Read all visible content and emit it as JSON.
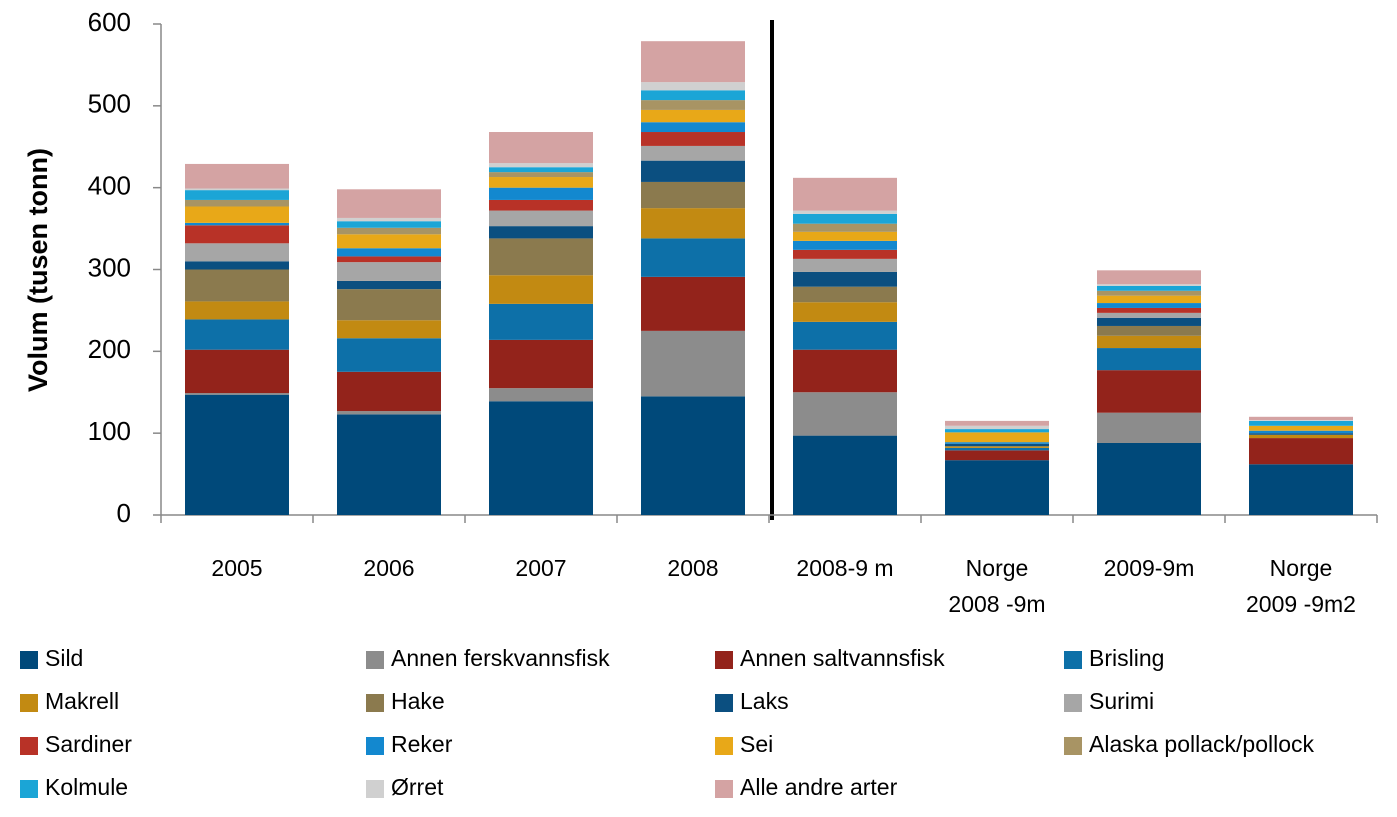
{
  "chart_data": {
    "type": "stacked_bar",
    "ylabel": "Volum (tusen tonn)",
    "categories": [
      "2005",
      "2006",
      "2007",
      "2008",
      "2008-9 m",
      "Norge\n2008 -9m",
      "2009-9m",
      "Norge\n2009 -9m2"
    ],
    "ylim": [
      0,
      600
    ],
    "yticks": [
      0,
      100,
      200,
      300,
      400,
      500,
      600
    ],
    "series": [
      {
        "name": "Sild",
        "color": "#00497a",
        "values": [
          147,
          123,
          139,
          145,
          97,
          67,
          88,
          62
        ]
      },
      {
        "name": "Annen ferskvannsfisk",
        "color": "#8c8c8c",
        "values": [
          2,
          4,
          16,
          80,
          53,
          0,
          37,
          0
        ]
      },
      {
        "name": "Annen saltvannsfisk",
        "color": "#93231b",
        "values": [
          53,
          48,
          59,
          66,
          52,
          12,
          52,
          32
        ]
      },
      {
        "name": "Brisling",
        "color": "#0d70a8",
        "values": [
          37,
          41,
          44,
          47,
          34,
          3,
          27,
          0
        ]
      },
      {
        "name": "Makrell",
        "color": "#c28a12",
        "values": [
          22,
          22,
          35,
          37,
          24,
          2,
          15,
          4
        ]
      },
      {
        "name": "Hake",
        "color": "#8b7a4e",
        "values": [
          39,
          38,
          45,
          32,
          19,
          0,
          12,
          0
        ]
      },
      {
        "name": "Laks",
        "color": "#0b4f80",
        "values": [
          10,
          10,
          15,
          26,
          18,
          3,
          10,
          2
        ]
      },
      {
        "name": "Surimi",
        "color": "#a6a6a6",
        "values": [
          22,
          23,
          19,
          18,
          16,
          0,
          6,
          0
        ]
      },
      {
        "name": "Sardiner",
        "color": "#b83227",
        "values": [
          22,
          7,
          13,
          17,
          11,
          0,
          6,
          0
        ]
      },
      {
        "name": "Reker",
        "color": "#1388cf",
        "values": [
          3,
          10,
          15,
          12,
          11,
          2,
          6,
          3
        ]
      },
      {
        "name": "Sei",
        "color": "#e8a818",
        "values": [
          20,
          17,
          13,
          15,
          11,
          12,
          9,
          6
        ]
      },
      {
        "name": "Alaska pollack/pollock",
        "color": "#a89464",
        "values": [
          8,
          8,
          6,
          12,
          10,
          0,
          6,
          0
        ]
      },
      {
        "name": "Kolmule",
        "color": "#1ba5d6",
        "values": [
          12,
          8,
          6,
          12,
          12,
          4,
          6,
          6
        ]
      },
      {
        "name": "Ørret",
        "color": "#d0d0d0",
        "values": [
          2,
          4,
          5,
          10,
          4,
          4,
          2,
          1
        ]
      },
      {
        "name": "Alle andre arter",
        "color": "#d4a3a3",
        "values": [
          30,
          35,
          38,
          50,
          40,
          6,
          17,
          4
        ]
      }
    ]
  }
}
